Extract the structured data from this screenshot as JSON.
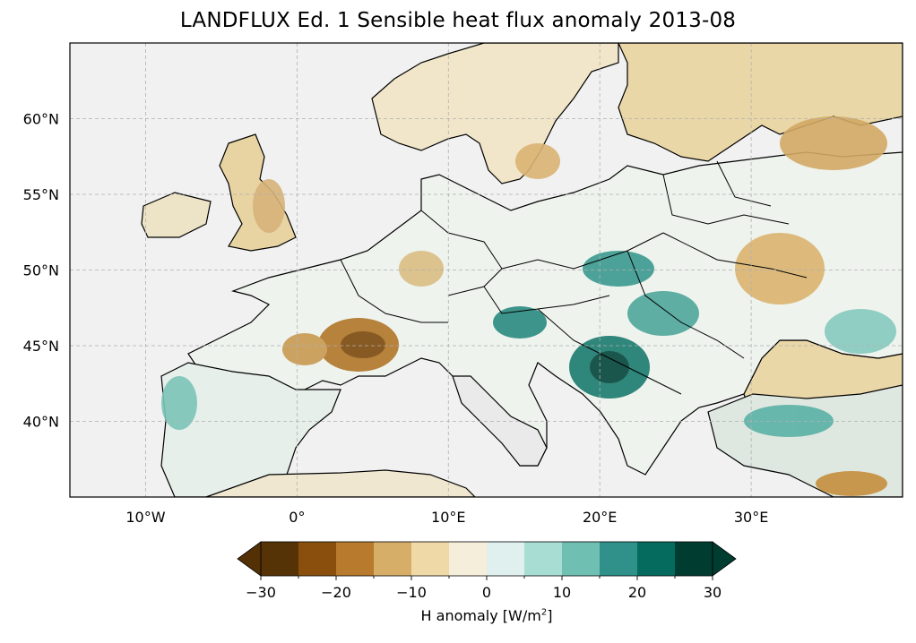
{
  "title": "LANDFLUX Ed. 1 Sensible heat flux anomaly 2013-08",
  "lon_labels": [
    "10°W",
    "0°",
    "10°E",
    "20°E",
    "30°E"
  ],
  "lat_labels": [
    "60°N",
    "55°N",
    "50°N",
    "45°N",
    "40°N"
  ],
  "lon_values": [
    -10,
    0,
    10,
    20,
    30
  ],
  "lat_values": [
    60,
    55,
    50,
    45,
    40
  ],
  "extent": {
    "lon": [
      -15,
      40
    ],
    "lat": [
      35,
      65
    ]
  },
  "gridlines": true,
  "colorbar": {
    "label_prefix": "H anomaly [W/m",
    "label_exp": "2",
    "label_suffix": "]",
    "ticks": [
      "−30",
      "−20",
      "−10",
      "0",
      "10",
      "20",
      "30"
    ],
    "tick_values": [
      -30,
      -20,
      -10,
      0,
      10,
      20,
      30
    ],
    "boundaries": [
      -30,
      -25,
      -20,
      -15,
      -10,
      -5,
      0,
      5,
      10,
      15,
      20,
      25,
      30
    ],
    "colors": [
      "#543005",
      "#8c510a",
      "#bf812d",
      "#dfc27d",
      "#f6e8c3",
      "#f5f5f5",
      "#c7eae5",
      "#80cdc1",
      "#35978f",
      "#01665e",
      "#003c30",
      "#003c30"
    ],
    "colors_display": [
      "#563306",
      "#8a4f0c",
      "#b87a2d",
      "#d6ae68",
      "#efd9a7",
      "#f5eedb",
      "#dff0ee",
      "#a8ddd4",
      "#6fbfb2",
      "#2f918a",
      "#056b5e",
      "#003c30"
    ],
    "extend": "both",
    "under_color": "#543005",
    "over_color": "#003c30",
    "orientation": "horizontal"
  },
  "colors": {
    "ocean": "#f1f1f1",
    "coast": "#000000",
    "grid": "#b0b0b0"
  }
}
